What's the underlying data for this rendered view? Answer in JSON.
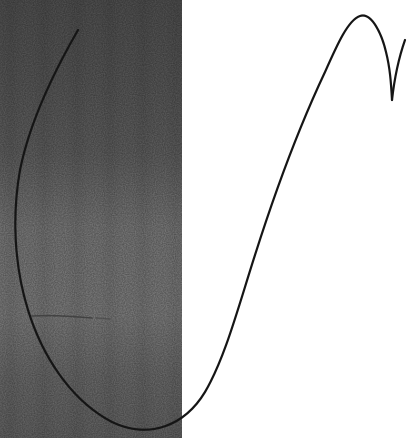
{
  "colors": {
    "background": "#ffffff",
    "scan_panel": "#777777",
    "ink": "#111111"
  },
  "content": {
    "text": []
  }
}
